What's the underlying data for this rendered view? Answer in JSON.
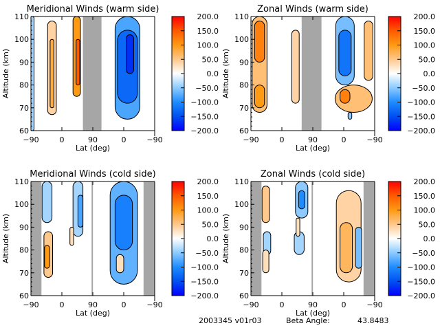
{
  "footer": {
    "id_text": "2003345 v01r03",
    "beta_label": "Beta Angle:",
    "beta_value": "43.8483"
  },
  "colorscale": {
    "stops": [
      {
        "v": -200,
        "color": "#0000ff"
      },
      {
        "v": -150,
        "color": "#0050f0"
      },
      {
        "v": -100,
        "color": "#1e8cff"
      },
      {
        "v": -50,
        "color": "#8ccaff"
      },
      {
        "v": 0,
        "color": "#ffffff"
      },
      {
        "v": 50,
        "color": "#ffc88c"
      },
      {
        "v": 100,
        "color": "#ff9a14"
      },
      {
        "v": 150,
        "color": "#ff5a00"
      },
      {
        "v": 200,
        "color": "#ff0000"
      }
    ]
  },
  "chart_data": [
    {
      "type": "heatmap",
      "title": "Meridional Winds (warm side)",
      "xlabel": "Lat (deg)",
      "ylabel": "Altitude (km)",
      "x_ticks": [
        "-90",
        "0",
        "90",
        "0",
        "-90"
      ],
      "y_ticks": [
        "60",
        "70",
        "80",
        "90",
        "100",
        "110"
      ],
      "ylim": [
        60,
        110
      ],
      "colorbar_ticks": [
        "200.0",
        "150.0",
        "100.0",
        "50.0",
        "0.0",
        "-50.0",
        "-100.0",
        "-150.0",
        "-200.0"
      ],
      "clim": [
        -200,
        200
      ],
      "masked_regions": [
        {
          "x0": 0.42,
          "x1": 0.57
        }
      ],
      "features": [
        {
          "x": 0.01,
          "y0": 60,
          "y1": 110,
          "w": 0.03,
          "value": -40
        },
        {
          "x": 0.17,
          "y0": 67,
          "y1": 108,
          "w": 0.07,
          "value": 40
        },
        {
          "x": 0.17,
          "y0": 70,
          "y1": 100,
          "w": 0.03,
          "value": 80
        },
        {
          "x": 0.37,
          "y0": 75,
          "y1": 110,
          "w": 0.06,
          "value": 100
        },
        {
          "x": 0.38,
          "y0": 80,
          "y1": 100,
          "w": 0.03,
          "value": 150
        },
        {
          "x": 0.78,
          "y0": 65,
          "y1": 110,
          "w": 0.2,
          "value": -80
        },
        {
          "x": 0.78,
          "y0": 72,
          "y1": 104,
          "w": 0.16,
          "value": -130
        },
        {
          "x": 0.8,
          "y0": 85,
          "y1": 102,
          "w": 0.06,
          "value": -170
        }
      ]
    },
    {
      "type": "heatmap",
      "title": "Zonal Winds (warm side)",
      "xlabel": "Lat (deg)",
      "ylabel": "Altitude (km)",
      "x_ticks": [
        "-90",
        "0",
        "90",
        "0",
        "-90"
      ],
      "y_ticks": [
        "60",
        "70",
        "80",
        "90",
        "100",
        "110"
      ],
      "ylim": [
        60,
        110
      ],
      "colorbar_ticks": [
        "200.0",
        "150.0",
        "100.0",
        "50.0",
        "0.0",
        "-50.0",
        "-100.0",
        "-150.0",
        "-200.0"
      ],
      "clim": [
        -200,
        200
      ],
      "masked_regions": [
        {
          "x0": 0.41,
          "x1": 0.57
        }
      ],
      "features": [
        {
          "x": 0.07,
          "y0": 68,
          "y1": 110,
          "w": 0.12,
          "value": 60
        },
        {
          "x": 0.07,
          "y0": 90,
          "y1": 108,
          "w": 0.08,
          "value": 120
        },
        {
          "x": 0.07,
          "y0": 70,
          "y1": 80,
          "w": 0.08,
          "value": 100
        },
        {
          "x": 0.36,
          "y0": 72,
          "y1": 104,
          "w": 0.06,
          "value": 40
        },
        {
          "x": 0.76,
          "y0": 80,
          "y1": 110,
          "w": 0.15,
          "value": -60
        },
        {
          "x": 0.76,
          "y0": 84,
          "y1": 104,
          "w": 0.1,
          "value": -120
        },
        {
          "x": 0.83,
          "y0": 68,
          "y1": 80,
          "w": 0.3,
          "value": 60
        },
        {
          "x": 0.76,
          "y0": 72,
          "y1": 78,
          "w": 0.08,
          "value": 120
        },
        {
          "x": 0.95,
          "y0": 82,
          "y1": 108,
          "w": 0.07,
          "value": 60
        },
        {
          "x": 0.8,
          "y0": 65,
          "y1": 68,
          "w": 0.03,
          "value": -50
        }
      ]
    },
    {
      "type": "heatmap",
      "title": "Meridional Winds (cold side)",
      "xlabel": "Lat (deg)",
      "ylabel": "Altitude (km)",
      "x_ticks": [
        "-90",
        "0",
        "90",
        "0",
        "-90"
      ],
      "y_ticks": [
        "60",
        "70",
        "80",
        "90",
        "100",
        "110"
      ],
      "ylim": [
        60,
        110
      ],
      "colorbar_ticks": [
        "200.0",
        "150.0",
        "100.0",
        "50.0",
        "0.0",
        "-50.0",
        "-100.0",
        "-150.0",
        "-200.0"
      ],
      "clim": [
        -200,
        200
      ],
      "masked_regions": [
        {
          "x0": 0.0,
          "x1": 0.085
        },
        {
          "x0": 0.49,
          "x1": 0.5
        },
        {
          "x0": 0.91,
          "x1": 1.0
        }
      ],
      "features": [
        {
          "x": 0.13,
          "y0": 92,
          "y1": 110,
          "w": 0.08,
          "value": -40
        },
        {
          "x": 0.14,
          "y0": 68,
          "y1": 88,
          "w": 0.07,
          "value": 50
        },
        {
          "x": 0.13,
          "y0": 72,
          "y1": 82,
          "w": 0.04,
          "value": 100
        },
        {
          "x": 0.38,
          "y0": 86,
          "y1": 110,
          "w": 0.08,
          "value": -40
        },
        {
          "x": 0.4,
          "y0": 90,
          "y1": 104,
          "w": 0.04,
          "value": -80
        },
        {
          "x": 0.33,
          "y0": 82,
          "y1": 90,
          "w": 0.03,
          "value": 30
        },
        {
          "x": 0.75,
          "y0": 65,
          "y1": 110,
          "w": 0.22,
          "value": -70
        },
        {
          "x": 0.75,
          "y0": 80,
          "y1": 104,
          "w": 0.14,
          "value": -110
        },
        {
          "x": 0.72,
          "y0": 70,
          "y1": 78,
          "w": 0.06,
          "value": 30
        }
      ]
    },
    {
      "type": "heatmap",
      "title": "Zonal Winds (cold side)",
      "xlabel": "Lat (deg)",
      "ylabel": "Altitude (km)",
      "x_ticks": [
        "-90",
        "0",
        "90",
        "0",
        "-90"
      ],
      "y_ticks": [
        "60",
        "70",
        "80",
        "90",
        "100",
        "110"
      ],
      "ylim": [
        60,
        110
      ],
      "colorbar_ticks": [
        "200.0",
        "150.0",
        "100.0",
        "50.0",
        "0.0",
        "-50.0",
        "-100.0",
        "-150.0",
        "-200.0"
      ],
      "clim": [
        -200,
        200
      ],
      "masked_regions": [
        {
          "x0": 0.0,
          "x1": 0.085
        },
        {
          "x0": 0.49,
          "x1": 0.5
        },
        {
          "x0": 0.91,
          "x1": 1.0
        }
      ],
      "features": [
        {
          "x": 0.12,
          "y0": 92,
          "y1": 108,
          "w": 0.06,
          "value": 50
        },
        {
          "x": 0.13,
          "y0": 78,
          "y1": 88,
          "w": 0.06,
          "value": -40
        },
        {
          "x": 0.12,
          "y0": 70,
          "y1": 80,
          "w": 0.05,
          "value": 30
        },
        {
          "x": 0.41,
          "y0": 94,
          "y1": 110,
          "w": 0.1,
          "value": -50
        },
        {
          "x": 0.41,
          "y0": 98,
          "y1": 106,
          "w": 0.05,
          "value": -100
        },
        {
          "x": 0.39,
          "y0": 78,
          "y1": 88,
          "w": 0.08,
          "value": -40
        },
        {
          "x": 0.38,
          "y0": 86,
          "y1": 94,
          "w": 0.03,
          "value": 30
        },
        {
          "x": 0.79,
          "y0": 66,
          "y1": 106,
          "w": 0.2,
          "value": 40
        },
        {
          "x": 0.77,
          "y0": 70,
          "y1": 92,
          "w": 0.1,
          "value": 70
        },
        {
          "x": 0.87,
          "y0": 72,
          "y1": 90,
          "w": 0.05,
          "value": -60
        }
      ]
    }
  ]
}
